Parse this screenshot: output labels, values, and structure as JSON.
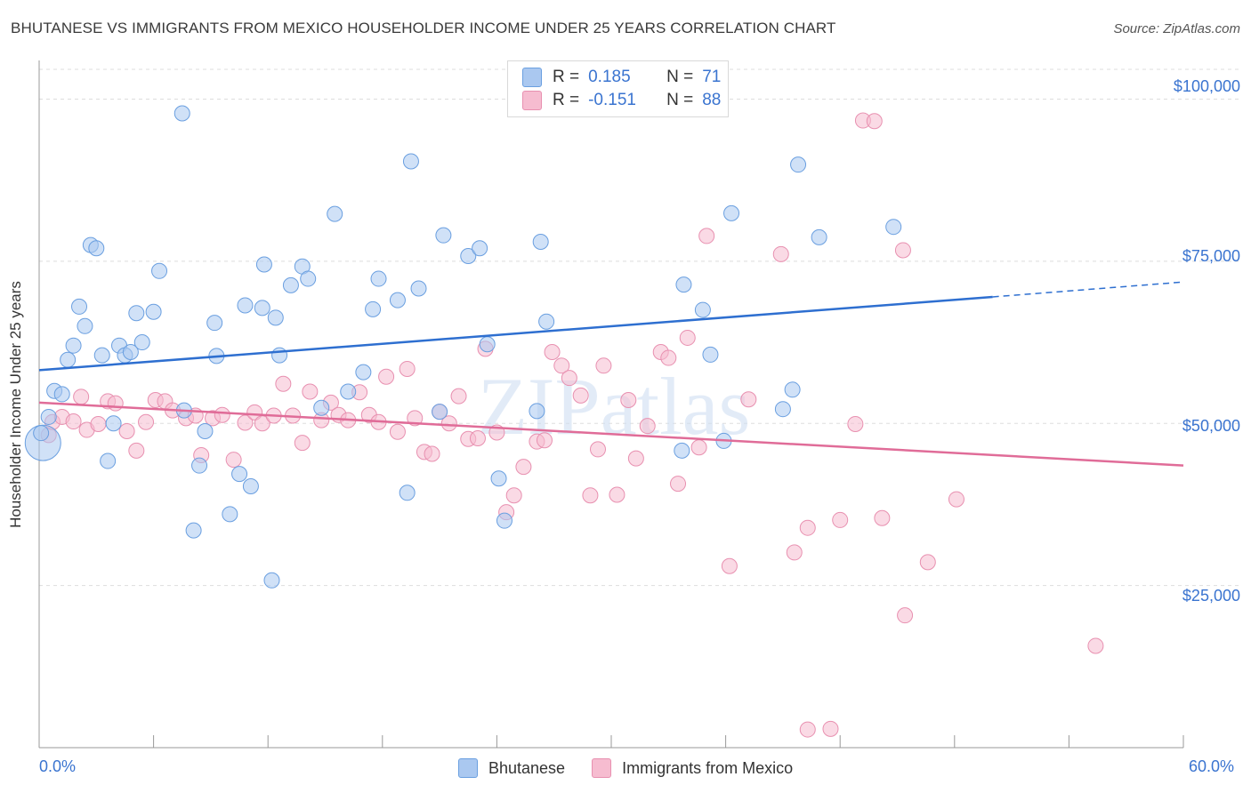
{
  "title": "BHUTANESE VS IMMIGRANTS FROM MEXICO HOUSEHOLDER INCOME UNDER 25 YEARS CORRELATION CHART",
  "source": "Source: ZipAtlas.com",
  "watermark": "ZIPatlas",
  "legend": {
    "rows": [
      {
        "r_label": "R =",
        "r_value": "0.185",
        "n_label": "N =",
        "n_value": "71",
        "color": "#aac8f0"
      },
      {
        "r_label": "R =",
        "r_value": "-0.151",
        "n_label": "N =",
        "n_value": "88",
        "color": "#f6bcd0"
      }
    ]
  },
  "bottom_legend": [
    {
      "label": "Bhutanese",
      "color": "#aac8f0"
    },
    {
      "label": "Immigrants from Mexico",
      "color": "#f6bcd0"
    }
  ],
  "colors": {
    "blue_fill": "#aac8f0",
    "blue_stroke": "#6a9fe0",
    "blue_line": "#2e6fd0",
    "pink_fill": "#f6bcd0",
    "pink_stroke": "#e890b0",
    "pink_line": "#e06c98",
    "tick_text": "#3a74d0",
    "grid": "#dddddd"
  },
  "chart_data": {
    "type": "scatter",
    "title": "BHUTANESE VS IMMIGRANTS FROM MEXICO HOUSEHOLDER INCOME UNDER 25 YEARS CORRELATION CHART",
    "xlabel": "",
    "ylabel": "Householder Income Under 25 years",
    "xlim": [
      0,
      60
    ],
    "ylim": [
      0,
      105000
    ],
    "x_tick_labels": [
      "0.0%",
      "60.0%"
    ],
    "y_ticks": [
      25000,
      50000,
      75000,
      100000
    ],
    "y_tick_labels": [
      "$25,000",
      "$50,000",
      "$75,000",
      "$100,000"
    ],
    "grid": true,
    "legend_position": "top-center",
    "series": [
      {
        "name": "Bhutanese",
        "r": 0.185,
        "n": 71,
        "trend": {
          "x": [
            0,
            50
          ],
          "y": [
            58200,
            69500
          ],
          "dashed_to": [
            60,
            71800
          ]
        },
        "points": [
          [
            0.2,
            47000
          ],
          [
            0.5,
            51000
          ],
          [
            0.8,
            55000
          ],
          [
            1.2,
            54500
          ],
          [
            1.5,
            59800
          ],
          [
            1.8,
            62000
          ],
          [
            2.1,
            68000
          ],
          [
            2.4,
            65000
          ],
          [
            2.7,
            77500
          ],
          [
            3.0,
            77000
          ],
          [
            3.3,
            60500
          ],
          [
            3.6,
            44200
          ],
          [
            3.9,
            50000
          ],
          [
            4.2,
            62000
          ],
          [
            4.5,
            60500
          ],
          [
            4.8,
            61000
          ],
          [
            5.1,
            67000
          ],
          [
            5.4,
            62500
          ],
          [
            6.0,
            67200
          ],
          [
            6.3,
            73500
          ],
          [
            7.5,
            97800
          ],
          [
            7.6,
            52000
          ],
          [
            8.1,
            33500
          ],
          [
            8.4,
            43500
          ],
          [
            8.7,
            48800
          ],
          [
            9.2,
            65500
          ],
          [
            9.3,
            60400
          ],
          [
            10.0,
            36000
          ],
          [
            10.5,
            42200
          ],
          [
            10.8,
            68200
          ],
          [
            11.1,
            40300
          ],
          [
            11.7,
            67800
          ],
          [
            11.8,
            74500
          ],
          [
            12.4,
            66300
          ],
          [
            12.6,
            60500
          ],
          [
            12.2,
            25800
          ],
          [
            13.2,
            71300
          ],
          [
            13.8,
            74200
          ],
          [
            14.1,
            72300
          ],
          [
            14.8,
            52400
          ],
          [
            15.5,
            82300
          ],
          [
            16.2,
            54900
          ],
          [
            17.0,
            57900
          ],
          [
            17.5,
            67600
          ],
          [
            17.8,
            72300
          ],
          [
            18.8,
            69000
          ],
          [
            19.3,
            39300
          ],
          [
            19.5,
            90400
          ],
          [
            19.9,
            70800
          ],
          [
            21.0,
            51800
          ],
          [
            21.2,
            79000
          ],
          [
            22.5,
            75800
          ],
          [
            23.1,
            77000
          ],
          [
            23.5,
            62200
          ],
          [
            24.1,
            41500
          ],
          [
            24.4,
            35000
          ],
          [
            26.1,
            51900
          ],
          [
            26.3,
            78000
          ],
          [
            26.6,
            65700
          ],
          [
            33.7,
            45800
          ],
          [
            33.8,
            71400
          ],
          [
            34.8,
            67500
          ],
          [
            35.2,
            60600
          ],
          [
            35.9,
            47300
          ],
          [
            36.3,
            82400
          ],
          [
            39.0,
            52200
          ],
          [
            39.5,
            55200
          ],
          [
            39.8,
            89900
          ],
          [
            40.9,
            78700
          ],
          [
            44.8,
            80300
          ],
          [
            0.1,
            48500
          ]
        ]
      },
      {
        "name": "Immigrants from Mexico",
        "r": -0.151,
        "n": 88,
        "trend": {
          "x": [
            0,
            60
          ],
          "y": [
            53200,
            43500
          ]
        },
        "points": [
          [
            0.5,
            48200
          ],
          [
            0.7,
            50200
          ],
          [
            1.2,
            51000
          ],
          [
            1.8,
            50300
          ],
          [
            2.2,
            54100
          ],
          [
            2.5,
            49000
          ],
          [
            3.1,
            49900
          ],
          [
            3.6,
            53400
          ],
          [
            4.0,
            53100
          ],
          [
            4.6,
            48800
          ],
          [
            5.1,
            45800
          ],
          [
            5.6,
            50200
          ],
          [
            6.1,
            53600
          ],
          [
            6.6,
            53400
          ],
          [
            7.0,
            52000
          ],
          [
            7.7,
            50800
          ],
          [
            8.2,
            51200
          ],
          [
            8.5,
            45100
          ],
          [
            9.1,
            50800
          ],
          [
            9.6,
            51300
          ],
          [
            10.2,
            44400
          ],
          [
            10.8,
            50100
          ],
          [
            11.3,
            51700
          ],
          [
            11.7,
            50000
          ],
          [
            12.3,
            51200
          ],
          [
            12.8,
            56100
          ],
          [
            13.3,
            51200
          ],
          [
            13.8,
            47000
          ],
          [
            14.2,
            54900
          ],
          [
            14.8,
            50500
          ],
          [
            15.3,
            53200
          ],
          [
            15.7,
            51300
          ],
          [
            16.2,
            50500
          ],
          [
            16.8,
            54800
          ],
          [
            17.3,
            51300
          ],
          [
            17.8,
            50200
          ],
          [
            18.2,
            57200
          ],
          [
            18.8,
            48700
          ],
          [
            19.3,
            58400
          ],
          [
            19.7,
            50800
          ],
          [
            20.2,
            45600
          ],
          [
            20.6,
            45300
          ],
          [
            21.0,
            51800
          ],
          [
            21.5,
            50000
          ],
          [
            22.0,
            54200
          ],
          [
            22.5,
            47600
          ],
          [
            23.0,
            47700
          ],
          [
            23.4,
            61500
          ],
          [
            24.0,
            48600
          ],
          [
            24.5,
            36300
          ],
          [
            24.9,
            38900
          ],
          [
            25.4,
            43300
          ],
          [
            26.1,
            47200
          ],
          [
            26.5,
            47400
          ],
          [
            26.9,
            61000
          ],
          [
            27.4,
            58900
          ],
          [
            27.8,
            57000
          ],
          [
            28.4,
            54300
          ],
          [
            28.9,
            38900
          ],
          [
            29.3,
            46000
          ],
          [
            29.6,
            58900
          ],
          [
            30.3,
            39000
          ],
          [
            30.9,
            53600
          ],
          [
            31.3,
            44600
          ],
          [
            31.9,
            49600
          ],
          [
            32.6,
            61000
          ],
          [
            33.0,
            60100
          ],
          [
            33.5,
            40700
          ],
          [
            34.0,
            63200
          ],
          [
            34.6,
            46300
          ],
          [
            35.0,
            78900
          ],
          [
            36.2,
            28000
          ],
          [
            37.2,
            53700
          ],
          [
            38.9,
            76100
          ],
          [
            39.6,
            30100
          ],
          [
            40.3,
            33900
          ],
          [
            40.3,
            2800
          ],
          [
            41.5,
            2900
          ],
          [
            42.0,
            35100
          ],
          [
            42.8,
            49900
          ],
          [
            43.2,
            96700
          ],
          [
            43.8,
            96600
          ],
          [
            44.2,
            35400
          ],
          [
            45.3,
            76700
          ],
          [
            45.4,
            20400
          ],
          [
            46.6,
            28600
          ],
          [
            48.1,
            38300
          ],
          [
            55.4,
            15700
          ]
        ]
      }
    ]
  }
}
